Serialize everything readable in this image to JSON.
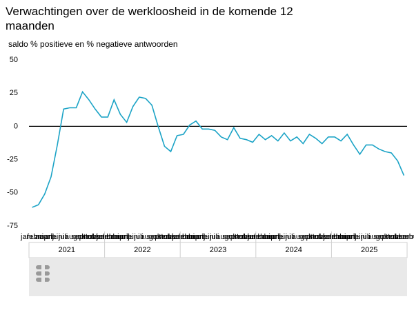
{
  "chart_data": {
    "type": "line",
    "title": "Verwachtingen over de werkloosheid in de komende 12 maanden",
    "subtitle": "saldo % positieve en % negatieve antwoorden",
    "categories": [
      "januari",
      "februari",
      "maart",
      "april",
      "mei",
      "juni",
      "juli",
      "augustus",
      "september",
      "oktober",
      "november",
      "december",
      "januari",
      "februari",
      "maart",
      "april",
      "mei",
      "juni",
      "juli",
      "augustus",
      "september",
      "oktober",
      "november",
      "december",
      "januari",
      "februari",
      "maart",
      "april",
      "mei",
      "juni",
      "juli",
      "augustus",
      "september",
      "oktober",
      "november",
      "december",
      "januari",
      "februari",
      "maart",
      "april",
      "mei",
      "juni",
      "juli",
      "augustus",
      "september",
      "oktober",
      "november",
      "december",
      "januari",
      "februari",
      "maart",
      "april",
      "mei",
      "juni",
      "juli",
      "augustus",
      "september",
      "oktober",
      "november",
      "december"
    ],
    "years": [
      "2021",
      "2022",
      "2023",
      "2024",
      "2025"
    ],
    "values": [
      -61,
      -59,
      -51,
      -38,
      -14,
      13,
      14,
      14,
      26,
      20,
      13,
      7,
      7,
      20,
      9,
      3,
      15,
      22,
      21,
      16,
      0,
      -15,
      -19,
      -7,
      -6,
      1,
      4,
      -2,
      -2,
      -3,
      -8,
      -10,
      -1,
      -9,
      -10,
      -12,
      -6,
      -10,
      -7,
      -11,
      -5,
      -11,
      -8,
      -13,
      -6,
      -9,
      -13,
      -8,
      -8,
      -11,
      -6,
      -14,
      -21,
      -14,
      -14,
      -17,
      -19,
      -20,
      -26,
      -37
    ],
    "color": "#1ba3c6",
    "ylim": [
      -75,
      50
    ],
    "yticks": [
      -75,
      -50,
      -25,
      0,
      25,
      50
    ]
  }
}
